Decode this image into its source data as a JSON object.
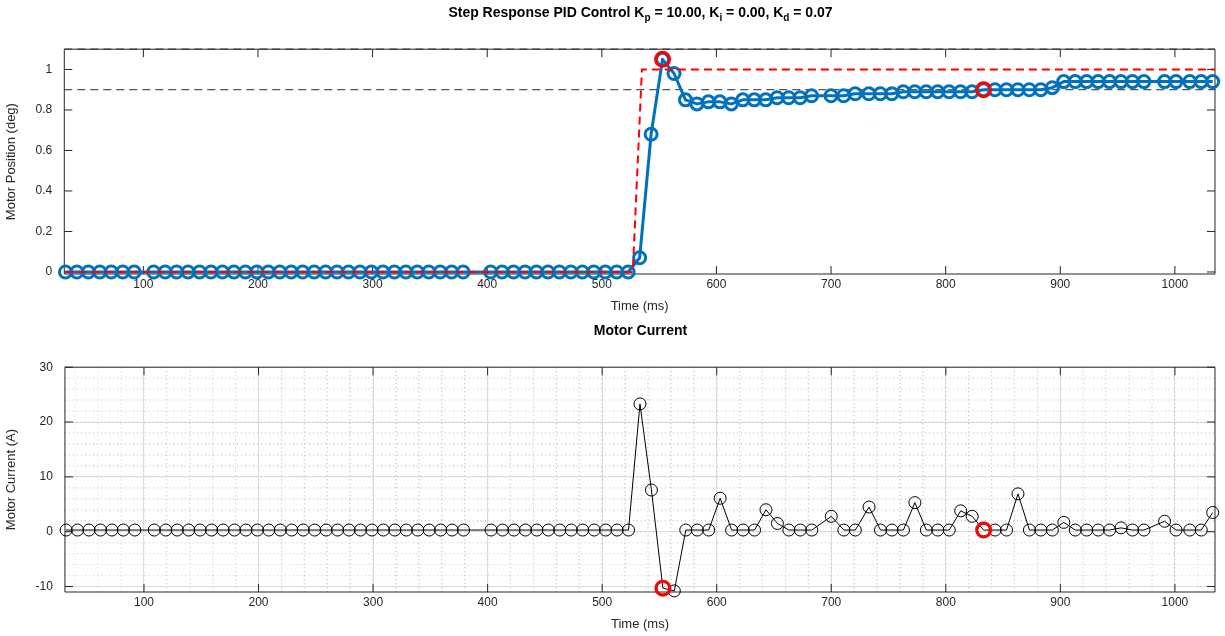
{
  "chart_data": [
    {
      "type": "line",
      "title": "Step Response PID Control K$_{p}$ = 10.00, K$_{i}$ = 0.00, K$_{d}$ = 0.07",
      "xlabel": "Time (ms)",
      "ylabel": "Motor Position (deg)",
      "marker": "circle",
      "xlim": [
        31,
        1035
      ],
      "xticks": [
        100,
        200,
        300,
        400,
        500,
        600,
        700,
        800,
        900,
        1000
      ],
      "ylim": [
        -0.01,
        1.1
      ],
      "yticks": [
        0,
        0.2,
        0.4,
        0.6,
        0.8,
        1
      ],
      "x": [
        32,
        42,
        52,
        62,
        72,
        82,
        92,
        109,
        119,
        129,
        139,
        149,
        159,
        169,
        179,
        189,
        199,
        209,
        219,
        229,
        239,
        249,
        259,
        269,
        279,
        289,
        299,
        309,
        319,
        329,
        339,
        349,
        359,
        369,
        379,
        403,
        413,
        423,
        433,
        443,
        453,
        463,
        473,
        483,
        493,
        503,
        513,
        523,
        533,
        543,
        553,
        563,
        573,
        583,
        593,
        603,
        613,
        623,
        633,
        643,
        653,
        663,
        673,
        683,
        700,
        711,
        721,
        733,
        743,
        753,
        763,
        773,
        783,
        793,
        803,
        813,
        823,
        833,
        843,
        853,
        863,
        873,
        883,
        893,
        903,
        913,
        923,
        933,
        943,
        953,
        963,
        973,
        991,
        1001,
        1013,
        1023,
        1033
      ],
      "series": [
        {
          "color": "#0072bd",
          "values": [
            0,
            0,
            0,
            0,
            0,
            0,
            0,
            0,
            0,
            0,
            0,
            0,
            0,
            0,
            0,
            0,
            0,
            0,
            0,
            0,
            0,
            0,
            0,
            0,
            0,
            0,
            0,
            0,
            0,
            0,
            0,
            0,
            0,
            0,
            0,
            0,
            0,
            0,
            0,
            0,
            0,
            0,
            0,
            0,
            0,
            0,
            0,
            0,
            0.07,
            0.68,
            1.05,
            0.98,
            0.85,
            0.83,
            0.84,
            0.84,
            0.83,
            0.85,
            0.85,
            0.85,
            0.86,
            0.86,
            0.86,
            0.87,
            0.87,
            0.87,
            0.88,
            0.88,
            0.88,
            0.88,
            0.89,
            0.89,
            0.89,
            0.89,
            0.89,
            0.89,
            0.89,
            0.9,
            0.9,
            0.9,
            0.9,
            0.9,
            0.9,
            0.91,
            0.94,
            0.94,
            0.94,
            0.94,
            0.94,
            0.94,
            0.94,
            0.94,
            0.94,
            0.94,
            0.94,
            0.94,
            0.94
          ]
        },
        {
          "type": "line",
          "color": "#ff0000",
          "x": [
            32,
            527,
            535,
            1035
          ],
          "values": [
            0,
            0,
            1,
            1
          ],
          "marker": "none",
          "line_style": "dashed"
        },
        {
          "type": "scatter",
          "color": "#ff0000",
          "x": [
            553,
            833
          ],
          "values": [
            1.05,
            0.9
          ]
        }
      ],
      "ref_lines": [
        {
          "axis": "y",
          "value": 0.9,
          "color": "#555555",
          "line_style": "dashed"
        },
        {
          "axis": "y",
          "value": 1.1,
          "color": "#555555",
          "line_style": "dashed"
        }
      ]
    },
    {
      "type": "line",
      "title": "Motor Current",
      "xlabel": "Time (ms)",
      "ylabel": "Motor Current (A)",
      "marker": "circle",
      "grid": true,
      "xlim": [
        31,
        1035
      ],
      "xticks": [
        100,
        200,
        300,
        400,
        500,
        600,
        700,
        800,
        900,
        1000
      ],
      "ylim": [
        -11,
        30
      ],
      "yticks": [
        -10,
        0,
        10,
        20,
        30
      ],
      "x": [
        32,
        42,
        52,
        62,
        72,
        82,
        92,
        109,
        119,
        129,
        139,
        149,
        159,
        169,
        179,
        189,
        199,
        209,
        219,
        229,
        239,
        249,
        259,
        269,
        279,
        289,
        299,
        309,
        319,
        329,
        339,
        349,
        359,
        369,
        379,
        403,
        413,
        423,
        433,
        443,
        453,
        463,
        473,
        483,
        493,
        503,
        513,
        523,
        533,
        543,
        553,
        563,
        573,
        583,
        593,
        603,
        613,
        623,
        633,
        643,
        653,
        663,
        673,
        683,
        700,
        711,
        721,
        733,
        743,
        753,
        763,
        773,
        783,
        793,
        803,
        813,
        823,
        833,
        843,
        853,
        863,
        873,
        883,
        893,
        903,
        913,
        923,
        933,
        943,
        953,
        963,
        973,
        991,
        1001,
        1013,
        1023,
        1033
      ],
      "series": [
        {
          "color": "#000000",
          "values": [
            0.3,
            0.3,
            0.3,
            0.3,
            0.3,
            0.3,
            0.3,
            0.3,
            0.3,
            0.3,
            0.3,
            0.3,
            0.3,
            0.3,
            0.3,
            0.3,
            0.3,
            0.3,
            0.3,
            0.3,
            0.3,
            0.3,
            0.3,
            0.3,
            0.3,
            0.3,
            0.3,
            0.3,
            0.3,
            0.3,
            0.3,
            0.3,
            0.3,
            0.3,
            0.3,
            0.3,
            0.3,
            0.3,
            0.3,
            0.3,
            0.3,
            0.3,
            0.3,
            0.3,
            0.3,
            0.3,
            0.3,
            0.3,
            23.3,
            7.6,
            -10.3,
            -10.8,
            0.3,
            0.3,
            0.3,
            6.1,
            0.3,
            0.3,
            0.3,
            4.0,
            1.5,
            0.3,
            0.3,
            0.3,
            2.8,
            0.3,
            0.3,
            4.5,
            0.3,
            0.3,
            0.3,
            5.3,
            0.3,
            0.3,
            0.3,
            3.8,
            2.8,
            0.3,
            0.3,
            0.3,
            6.9,
            0.3,
            0.3,
            0.3,
            1.7,
            0.3,
            0.3,
            0.3,
            0.3,
            0.7,
            0.3,
            0.3,
            1.9,
            0.3,
            0.3,
            0.3,
            3.5
          ]
        },
        {
          "type": "scatter",
          "color": "#ff0000",
          "x": [
            553,
            833
          ],
          "values": [
            -10.3,
            0.3
          ]
        }
      ]
    }
  ]
}
